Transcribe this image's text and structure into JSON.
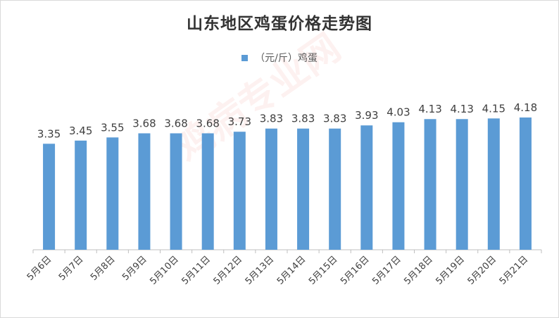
{
  "chart_data": {
    "type": "bar",
    "title": "山东地区鸡蛋价格走势图",
    "legend_position": "top",
    "series": [
      {
        "name": "（元/斤）鸡蛋",
        "color": "#5b9bd5",
        "values": [
          3.35,
          3.45,
          3.55,
          3.68,
          3.68,
          3.68,
          3.73,
          3.83,
          3.83,
          3.83,
          3.93,
          4.03,
          4.13,
          4.13,
          4.15,
          4.18
        ]
      }
    ],
    "categories": [
      "5月6日",
      "5月7日",
      "5月8日",
      "5月9日",
      "5月10日",
      "5月11日",
      "5月12日",
      "5月13日",
      "5月14日",
      "5月15日",
      "5月16日",
      "5月17日",
      "5月18日",
      "5月19日",
      "5月20日",
      "5月21日"
    ],
    "data_labels": [
      "3.35",
      "3.45",
      "3.55",
      "3.68",
      "3.68",
      "3.68",
      "3.73",
      "3.83",
      "3.83",
      "3.83",
      "3.93",
      "4.03",
      "4.13",
      "4.13",
      "4.15",
      "4.18"
    ],
    "ylim": [
      0,
      4.5
    ],
    "grid": false,
    "watermark": "鸡病专业网"
  }
}
